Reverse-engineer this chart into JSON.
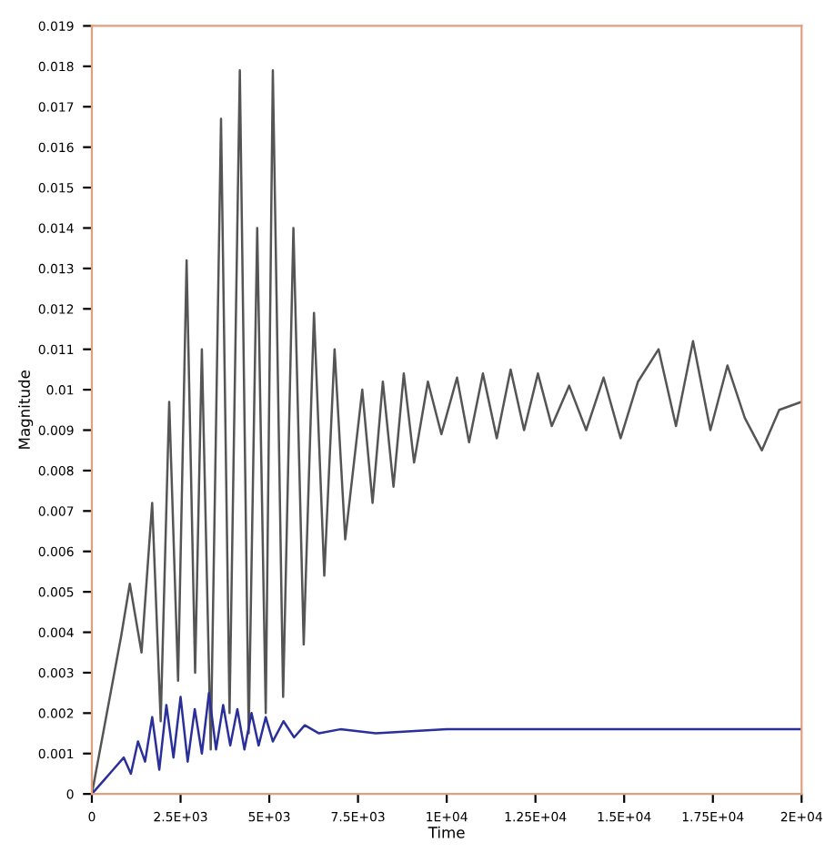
{
  "chart_data": {
    "type": "line",
    "xlabel": "Time",
    "ylabel": "Magnitude",
    "xlim": [
      0,
      20000
    ],
    "ylim": [
      0,
      0.019
    ],
    "xticks": [
      0,
      {
        "value": 2500,
        "label": "2.5E+03"
      },
      {
        "value": 5000,
        "label": "5E+03"
      },
      {
        "value": 7500,
        "label": "7.5E+03"
      },
      {
        "value": 10000,
        "label": "1E+04"
      },
      {
        "value": 12500,
        "label": "1.25E+04"
      },
      {
        "value": 15000,
        "label": "1.5E+04"
      },
      {
        "value": 17500,
        "label": "1.75E+04"
      },
      {
        "value": 20000,
        "label": "2E+04"
      }
    ],
    "yticks": [
      0,
      0.001,
      0.002,
      0.003,
      0.004,
      0.005,
      0.006,
      0.007,
      0.008,
      0.009,
      0.01,
      0.011,
      0.012,
      0.013,
      0.014,
      0.015,
      0.016,
      0.017,
      0.018,
      0.019
    ],
    "grid": false,
    "marker": "none",
    "line_style": "solid",
    "series": [
      {
        "color": "#555555",
        "x": [
          0,
          825,
          1070,
          1400,
          1700,
          1940,
          2180,
          2430,
          2670,
          2910,
          3100,
          3350,
          3640,
          3880,
          4170,
          4420,
          4660,
          4900,
          5100,
          5390,
          5680,
          5970,
          6260,
          6550,
          6840,
          7140,
          7620,
          7910,
          8200,
          8500,
          8790,
          9080,
          9470,
          9850,
          10290,
          10630,
          11020,
          11410,
          11800,
          12180,
          12570,
          12960,
          13450,
          13930,
          14420,
          14900,
          15390,
          15970,
          16460,
          16940,
          17430,
          17910,
          18400,
          18880,
          19370,
          20000
        ],
        "values": [
          0,
          0.0039,
          0.0052,
          0.0035,
          0.0072,
          0.0018,
          0.0097,
          0.0028,
          0.0132,
          0.003,
          0.011,
          0.0011,
          0.0167,
          0.002,
          0.0179,
          0.0015,
          0.014,
          0.002,
          0.0179,
          0.0024,
          0.014,
          0.0037,
          0.0119,
          0.0054,
          0.011,
          0.0063,
          0.01,
          0.0072,
          0.0102,
          0.0076,
          0.0104,
          0.0082,
          0.0102,
          0.0089,
          0.0103,
          0.0087,
          0.0104,
          0.0088,
          0.0105,
          0.009,
          0.0104,
          0.0091,
          0.0101,
          0.009,
          0.0103,
          0.0088,
          0.0102,
          0.011,
          0.0091,
          0.0112,
          0.009,
          0.0106,
          0.0093,
          0.0085,
          0.0095,
          0.0097
        ]
      },
      {
        "color": "#2a2f9a",
        "x": [
          0,
          300,
          600,
          900,
          1100,
          1300,
          1500,
          1700,
          1900,
          2100,
          2300,
          2500,
          2700,
          2900,
          3100,
          3300,
          3500,
          3700,
          3900,
          4100,
          4300,
          4500,
          4700,
          4900,
          5100,
          5400,
          5700,
          6000,
          6400,
          7000,
          8000,
          10000,
          14000,
          20000
        ],
        "values": [
          0,
          0.0003,
          0.0006,
          0.0009,
          0.0005,
          0.0013,
          0.0008,
          0.0019,
          0.0006,
          0.0022,
          0.0009,
          0.0024,
          0.0008,
          0.0021,
          0.001,
          0.0025,
          0.0011,
          0.0022,
          0.0012,
          0.0021,
          0.0011,
          0.002,
          0.0012,
          0.0019,
          0.0013,
          0.0018,
          0.0014,
          0.0017,
          0.0015,
          0.0016,
          0.0015,
          0.0016,
          0.0016,
          0.0016
        ]
      }
    ]
  }
}
